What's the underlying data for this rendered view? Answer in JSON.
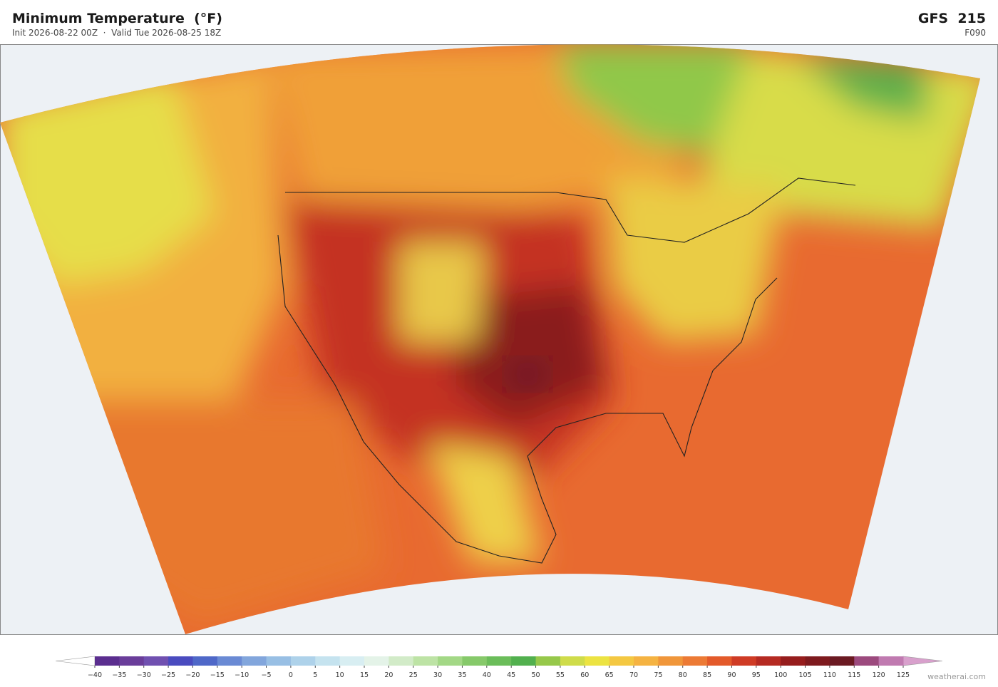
{
  "header": {
    "title": "Minimum Temperature  (°F)",
    "subtitle": "Init 2026-08-22 00Z  ·  Valid Tue 2026-08-25 18Z",
    "model": "GFS  215",
    "forecast_hour": "F090"
  },
  "colorbar": {
    "ticks": [
      {
        "value": -40,
        "label": "−40"
      },
      {
        "value": -35,
        "label": "−35"
      },
      {
        "value": -30,
        "label": "−30"
      },
      {
        "value": -25,
        "label": "−25"
      },
      {
        "value": -20,
        "label": "−20"
      },
      {
        "value": -15,
        "label": "−15"
      },
      {
        "value": -10,
        "label": "−10"
      },
      {
        "value": -5,
        "label": "−5"
      },
      0,
      5,
      10,
      15,
      20,
      25,
      30,
      35,
      40,
      45,
      50,
      55,
      60,
      65,
      70,
      75,
      80,
      85,
      90,
      95,
      100,
      105,
      110,
      115,
      120,
      125
    ],
    "colors": [
      "#5b2e8f",
      "#6a3d9a",
      "#7050b0",
      "#4a4bbf",
      "#4f68c8",
      "#6a8ad4",
      "#82a6dc",
      "#98bfe4",
      "#aed2ea",
      "#c5e3ef",
      "#d8eef2",
      "#e4f3e8",
      "#d2ebc8",
      "#bde3a5",
      "#a3d886",
      "#86c96a",
      "#6bbd5a",
      "#52b04e",
      "#96c84a",
      "#cfdc4a",
      "#ece342",
      "#f4c842",
      "#f5b342",
      "#f0963a",
      "#ec7a35",
      "#e35a2a",
      "#cf3b25",
      "#b52a22",
      "#961d1d",
      "#7e1a1e",
      "#6b1a22",
      "#9c4a7e",
      "#c07ab0"
    ],
    "extend_low_color": "#ffffff",
    "extend_high_color": "#d8a0cc"
  },
  "watermark": "weatherai.com"
}
